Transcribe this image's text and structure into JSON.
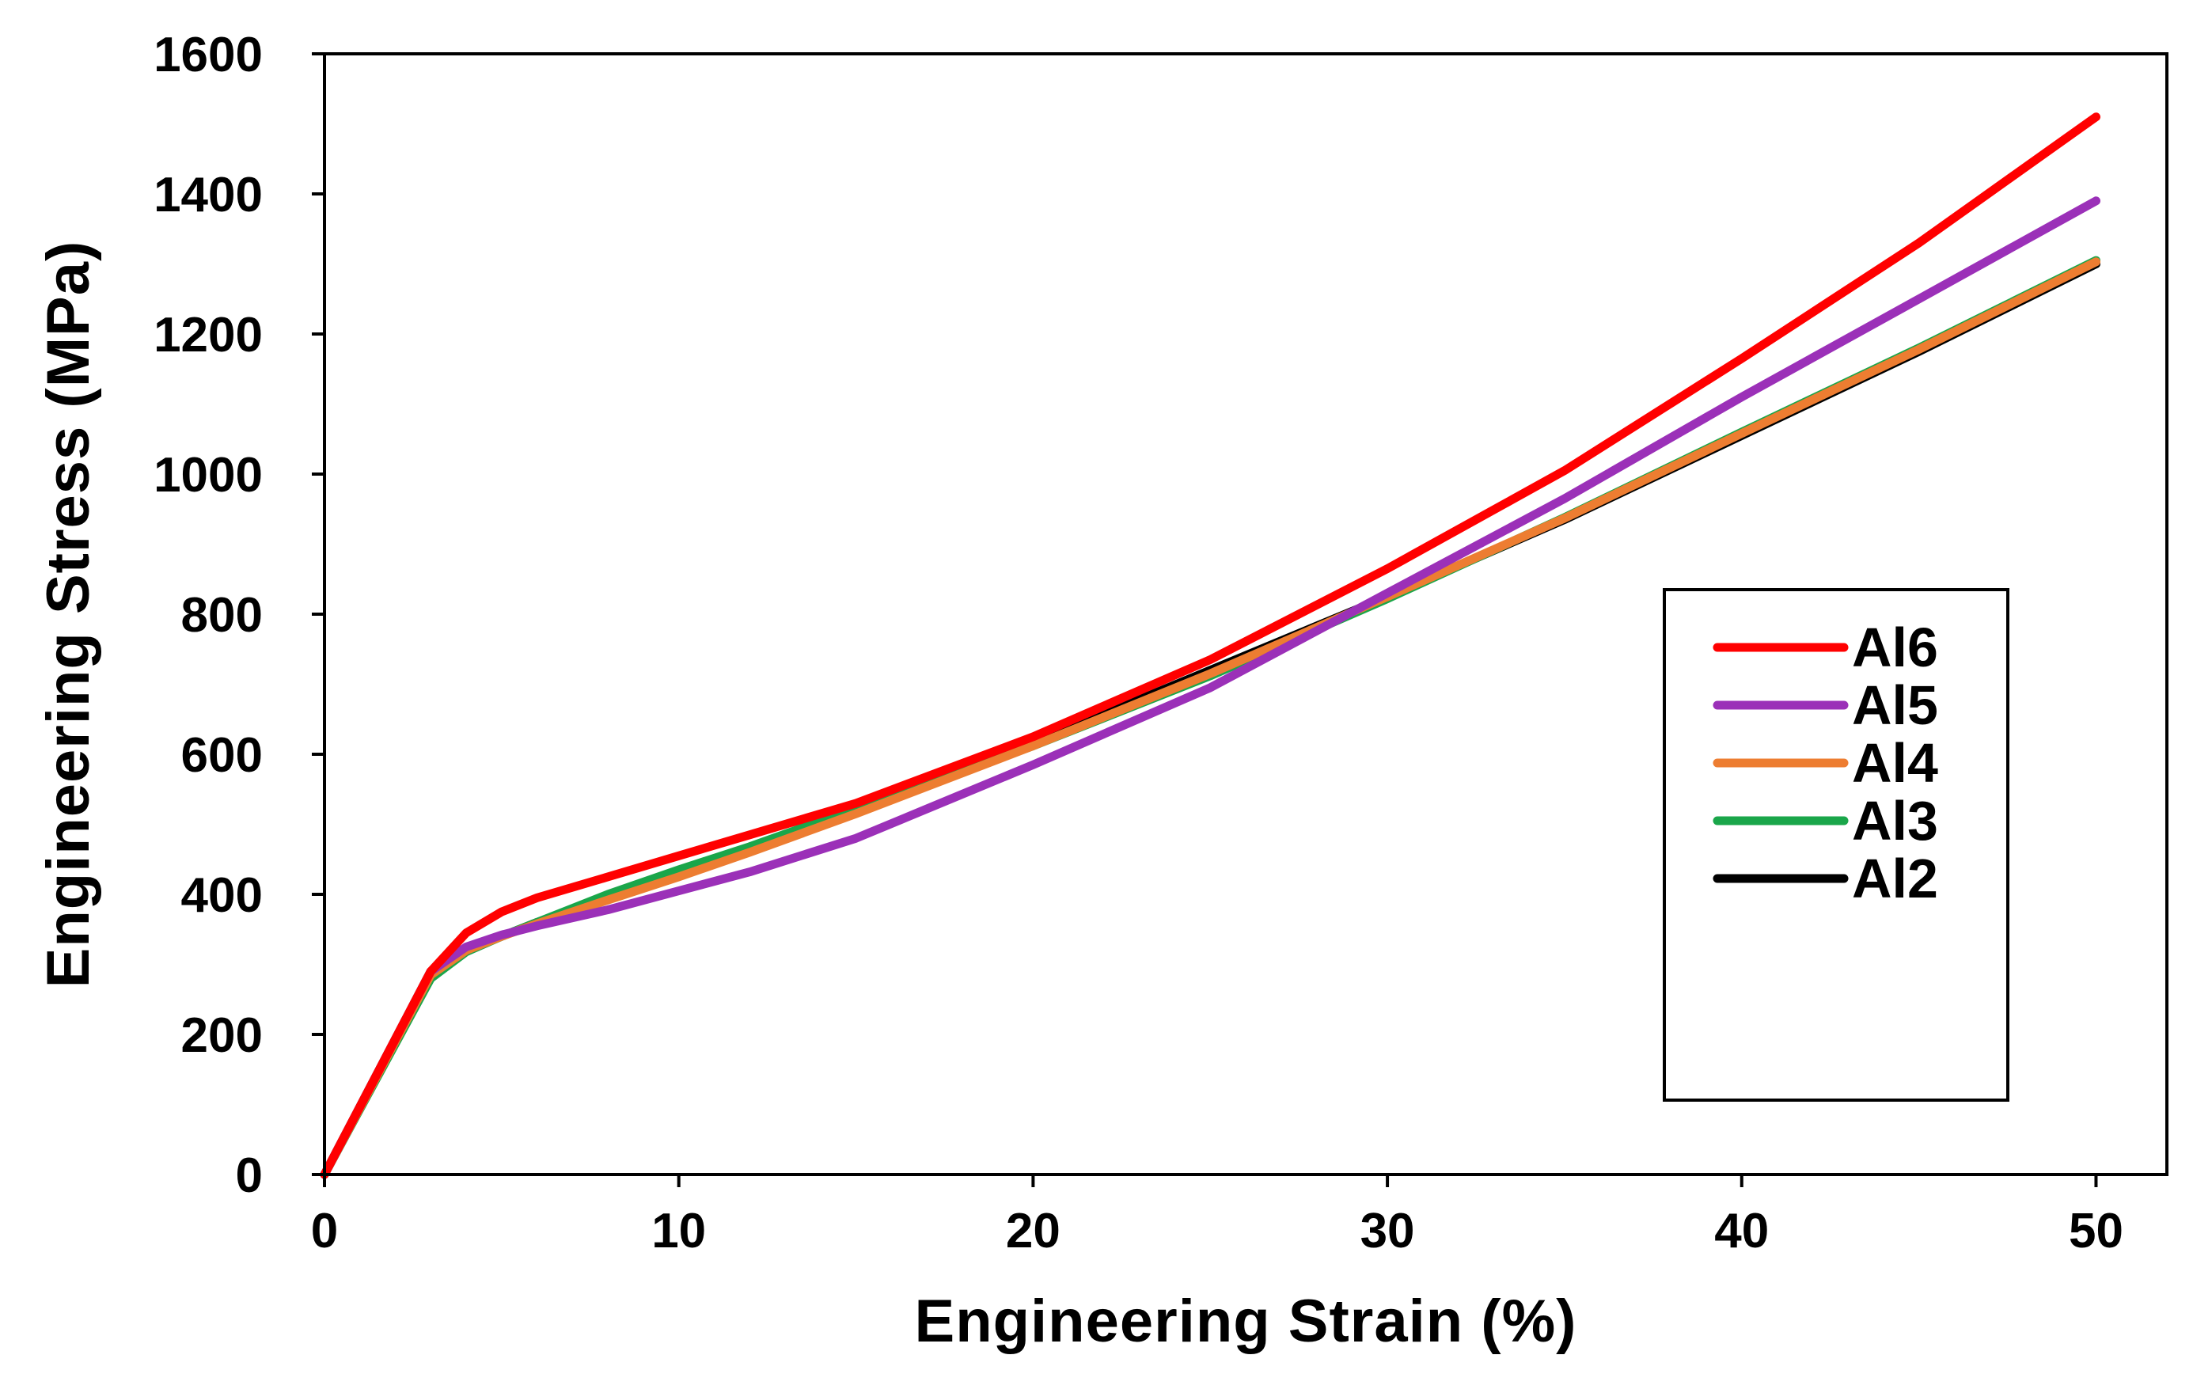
{
  "chart_data": {
    "type": "line",
    "title": "",
    "xlabel": "Engineering Strain (%)",
    "ylabel": "Engineering Stress (MPa)",
    "xlim": [
      0,
      52
    ],
    "ylim": [
      0,
      1600
    ],
    "xticks": [
      0,
      10,
      20,
      30,
      40,
      50
    ],
    "yticks": [
      0,
      200,
      400,
      600,
      800,
      1000,
      1200,
      1400,
      1600
    ],
    "grid": false,
    "legend_position": "center-right",
    "series": [
      {
        "name": "Al2",
        "color": "#000000",
        "x": [
          0,
          3,
          4,
          5,
          6,
          8,
          10,
          12,
          15,
          20,
          25,
          30,
          35,
          40,
          45,
          50
        ],
        "y": [
          0,
          290,
          320,
          340,
          360,
          395,
          430,
          465,
          520,
          615,
          720,
          825,
          935,
          1055,
          1175,
          1300
        ]
      },
      {
        "name": "Al3",
        "color": "#1aa64a",
        "x": [
          0,
          3,
          4,
          5,
          6,
          8,
          10,
          12,
          15,
          20,
          25,
          30,
          35,
          40,
          45,
          50
        ],
        "y": [
          0,
          280,
          318,
          340,
          360,
          400,
          435,
          468,
          522,
          612,
          712,
          822,
          938,
          1060,
          1180,
          1305
        ]
      },
      {
        "name": "Al4",
        "color": "#ed7d31",
        "x": [
          0,
          3,
          4,
          5,
          6,
          8,
          10,
          12,
          15,
          20,
          25,
          30,
          35,
          40,
          45,
          50
        ],
        "y": [
          0,
          285,
          320,
          340,
          358,
          392,
          425,
          460,
          515,
          612,
          715,
          825,
          937,
          1058,
          1178,
          1303
        ]
      },
      {
        "name": "Al5",
        "color": "#9b30b8",
        "x": [
          0,
          3,
          4,
          5,
          6,
          8,
          10,
          12,
          15,
          20,
          25,
          30,
          35,
          40,
          45,
          50
        ],
        "y": [
          0,
          290,
          325,
          342,
          355,
          378,
          405,
          432,
          480,
          585,
          695,
          830,
          965,
          1110,
          1250,
          1390
        ]
      },
      {
        "name": "Al6",
        "color": "#ff0000",
        "x": [
          0,
          3,
          4,
          5,
          6,
          8,
          10,
          12,
          15,
          20,
          25,
          30,
          35,
          40,
          45,
          50
        ],
        "y": [
          0,
          290,
          345,
          375,
          395,
          425,
          455,
          485,
          530,
          625,
          735,
          865,
          1005,
          1165,
          1330,
          1510
        ]
      }
    ],
    "legend_order": [
      "Al6",
      "Al5",
      "Al4",
      "Al3",
      "Al2"
    ]
  }
}
